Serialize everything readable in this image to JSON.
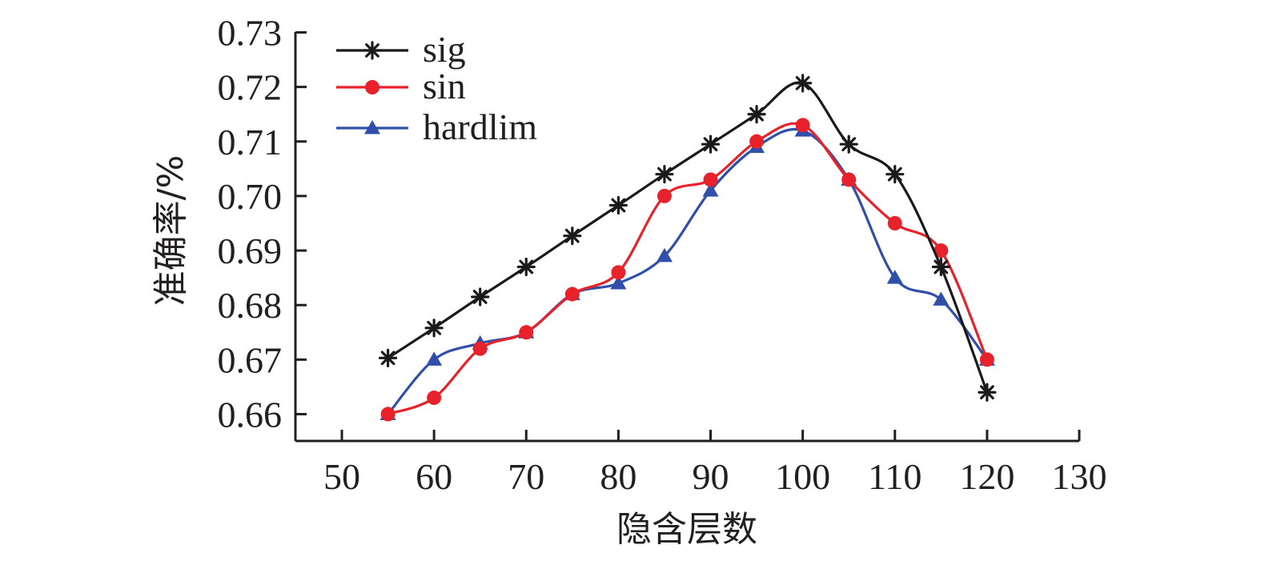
{
  "chart_data": {
    "type": "line",
    "title": "",
    "xlabel": "隐含层数",
    "ylabel": "准确率/%",
    "xlim": [
      45,
      130
    ],
    "ylim": [
      0.655,
      0.73
    ],
    "xticks": [
      50,
      60,
      70,
      80,
      90,
      100,
      110,
      120,
      130
    ],
    "xtick_labels": [
      "50",
      "60",
      "70",
      "80",
      "90",
      "100",
      "110",
      "120",
      "130"
    ],
    "yticks": [
      0.66,
      0.67,
      0.68,
      0.69,
      0.7,
      0.71,
      0.72,
      0.73
    ],
    "ytick_labels": [
      "0.66",
      "0.67",
      "0.68",
      "0.69",
      "0.70",
      "0.71",
      "0.72",
      "0.73"
    ],
    "grid": false,
    "legend_position": "top-left",
    "x": [
      55,
      60,
      65,
      70,
      75,
      80,
      85,
      90,
      95,
      100,
      105,
      110,
      115,
      120
    ],
    "series": [
      {
        "name": "sig",
        "color": "#1a1a1a",
        "marker": "asterisk",
        "values": [
          0.6703,
          0.6758,
          0.6815,
          0.687,
          0.6927,
          0.6983,
          0.704,
          0.7095,
          0.715,
          0.7207,
          0.7095,
          0.704,
          0.687,
          0.664
        ]
      },
      {
        "name": "sin",
        "color": "#e8222b",
        "marker": "circle",
        "values": [
          0.66,
          0.663,
          0.672,
          0.675,
          0.682,
          0.686,
          0.7,
          0.703,
          0.71,
          0.713,
          0.703,
          0.695,
          0.69,
          0.67
        ]
      },
      {
        "name": "hardlim",
        "color": "#2f4fa8",
        "marker": "triangle",
        "values": [
          0.66,
          0.67,
          0.673,
          0.675,
          0.682,
          0.684,
          0.689,
          0.701,
          0.709,
          0.712,
          0.703,
          0.685,
          0.681,
          0.67
        ]
      }
    ]
  }
}
